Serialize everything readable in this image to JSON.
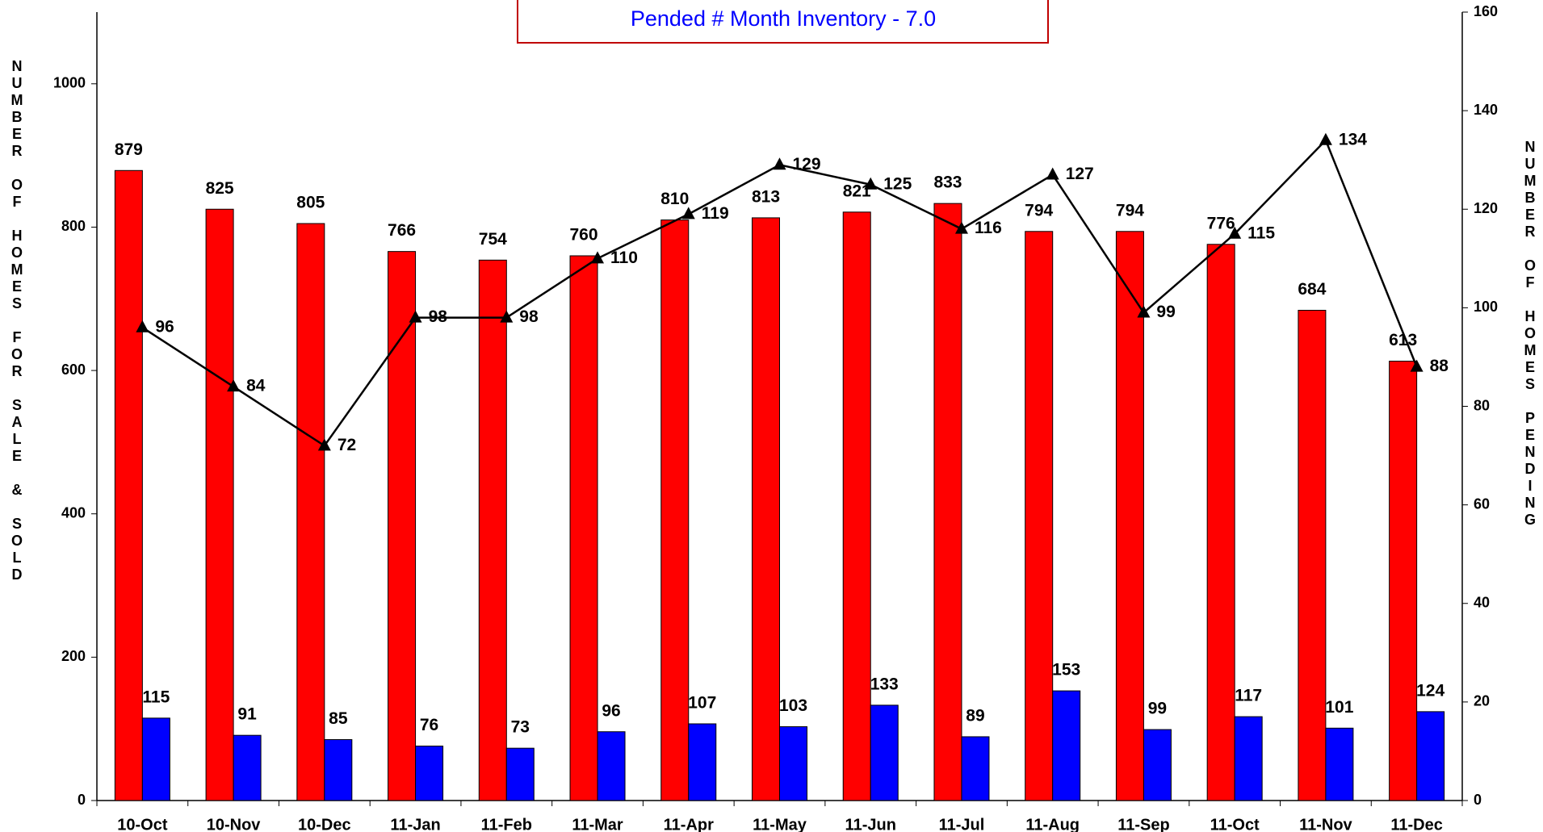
{
  "chart_data": {
    "type": "bar",
    "title": "Pended # Month Inventory - 7.0",
    "ylabel": "NUMBER OF HOMES FOR SALE & SOLD",
    "y2label": "NUMBER OF HOMES PENDING",
    "categories": [
      "10-Oct",
      "10-Nov",
      "10-Dec",
      "11-Jan",
      "11-Feb",
      "11-Mar",
      "11-Apr",
      "11-May",
      "11-Jun",
      "11-Jul",
      "11-Aug",
      "11-Sep",
      "11-Oct",
      "11-Nov",
      "11-Dec"
    ],
    "series": [
      {
        "color": "#ff0000",
        "values": [
          879,
          825,
          805,
          766,
          754,
          760,
          810,
          813,
          821,
          833,
          794,
          794,
          776,
          684,
          613
        ]
      },
      {
        "color": "#0000ff",
        "values": [
          115,
          91,
          85,
          76,
          73,
          96,
          107,
          103,
          133,
          89,
          153,
          99,
          117,
          101,
          124
        ]
      },
      {
        "type": "line",
        "axis": "y2",
        "color": "#000000",
        "marker": "triangle",
        "values": [
          96,
          84,
          72,
          98,
          98,
          110,
          119,
          129,
          125,
          116,
          127,
          99,
          115,
          134,
          88
        ]
      }
    ],
    "ylim": [
      0,
      1100
    ],
    "yticks": [
      0,
      200,
      400,
      600,
      800,
      1000
    ],
    "y2lim": [
      0,
      160
    ],
    "y2ticks": [
      0,
      20,
      40,
      60,
      80,
      100,
      120,
      140,
      160
    ],
    "grid": false
  }
}
